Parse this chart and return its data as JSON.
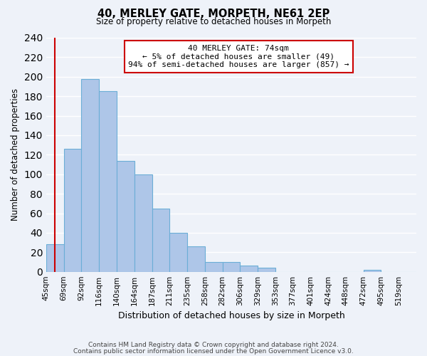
{
  "title": "40, MERLEY GATE, MORPETH, NE61 2EP",
  "subtitle": "Size of property relative to detached houses in Morpeth",
  "xlabel": "Distribution of detached houses by size in Morpeth",
  "ylabel": "Number of detached properties",
  "bin_labels": [
    "45sqm",
    "69sqm",
    "92sqm",
    "116sqm",
    "140sqm",
    "164sqm",
    "187sqm",
    "211sqm",
    "235sqm",
    "258sqm",
    "282sqm",
    "306sqm",
    "329sqm",
    "353sqm",
    "377sqm",
    "401sqm",
    "424sqm",
    "448sqm",
    "472sqm",
    "495sqm",
    "519sqm"
  ],
  "bar_heights": [
    28,
    126,
    198,
    185,
    114,
    100,
    65,
    40,
    26,
    10,
    10,
    6,
    4,
    0,
    0,
    0,
    0,
    0,
    2,
    0,
    0
  ],
  "bar_color": "#aec6e8",
  "bar_edge_color": "#6baed6",
  "vline_color": "#cc0000",
  "vline_x": 0.5,
  "annotation_line1": "40 MERLEY GATE: 74sqm",
  "annotation_line2": "← 5% of detached houses are smaller (49)",
  "annotation_line3": "94% of semi-detached houses are larger (857) →",
  "annotation_box_color": "#ffffff",
  "annotation_box_edge_color": "#cc0000",
  "ylim": [
    0,
    240
  ],
  "yticks": [
    0,
    20,
    40,
    60,
    80,
    100,
    120,
    140,
    160,
    180,
    200,
    220,
    240
  ],
  "footer_line1": "Contains HM Land Registry data © Crown copyright and database right 2024.",
  "footer_line2": "Contains public sector information licensed under the Open Government Licence v3.0.",
  "background_color": "#eef2f9",
  "grid_color": "#ffffff"
}
